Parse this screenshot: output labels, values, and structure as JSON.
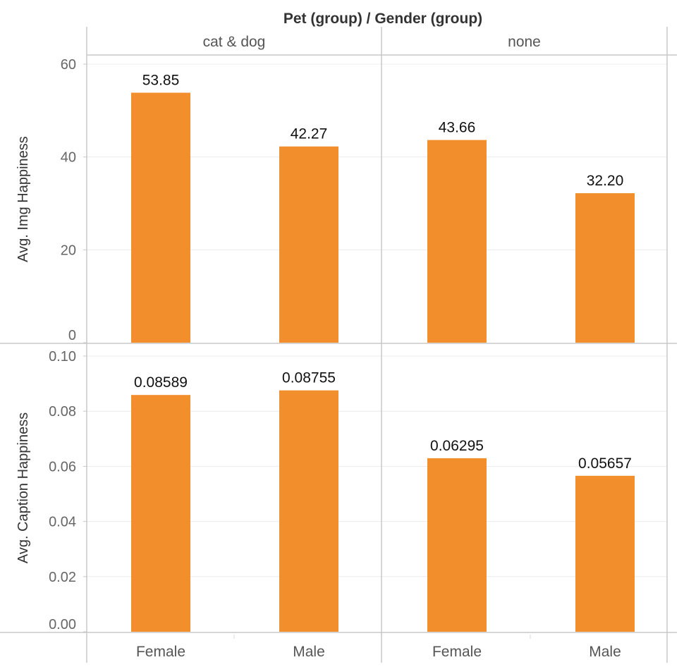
{
  "header": {
    "title": "Pet (group)  /  Gender (group)"
  },
  "chart_data": {
    "type": "bar",
    "title": "Pet (group)  /  Gender (group)",
    "color": "#f28e2c",
    "columns": [
      {
        "label": "cat & dog",
        "categories": [
          "Female",
          "Male"
        ]
      },
      {
        "label": "none",
        "categories": [
          "Female",
          "Male"
        ]
      }
    ],
    "rows": [
      {
        "ylabel": "Avg. Img Happiness",
        "ylim": [
          0,
          60
        ],
        "ticks": [
          "0",
          "20",
          "40",
          "60"
        ],
        "tick_values": [
          0,
          20,
          40,
          60
        ],
        "values": [
          53.85,
          42.27,
          43.66,
          32.2
        ],
        "labels": [
          "53.85",
          "42.27",
          "43.66",
          "32.20"
        ]
      },
      {
        "ylabel": "Avg. Caption Happiness",
        "ylim": [
          0,
          0.1
        ],
        "ticks": [
          "0.00",
          "0.02",
          "0.04",
          "0.06",
          "0.08",
          "0.10"
        ],
        "tick_values": [
          0,
          0.02,
          0.04,
          0.06,
          0.08,
          0.1
        ],
        "values": [
          0.08589,
          0.08755,
          0.06295,
          0.05657
        ],
        "labels": [
          "0.08589",
          "0.08755",
          "0.06295",
          "0.05657"
        ]
      }
    ]
  }
}
